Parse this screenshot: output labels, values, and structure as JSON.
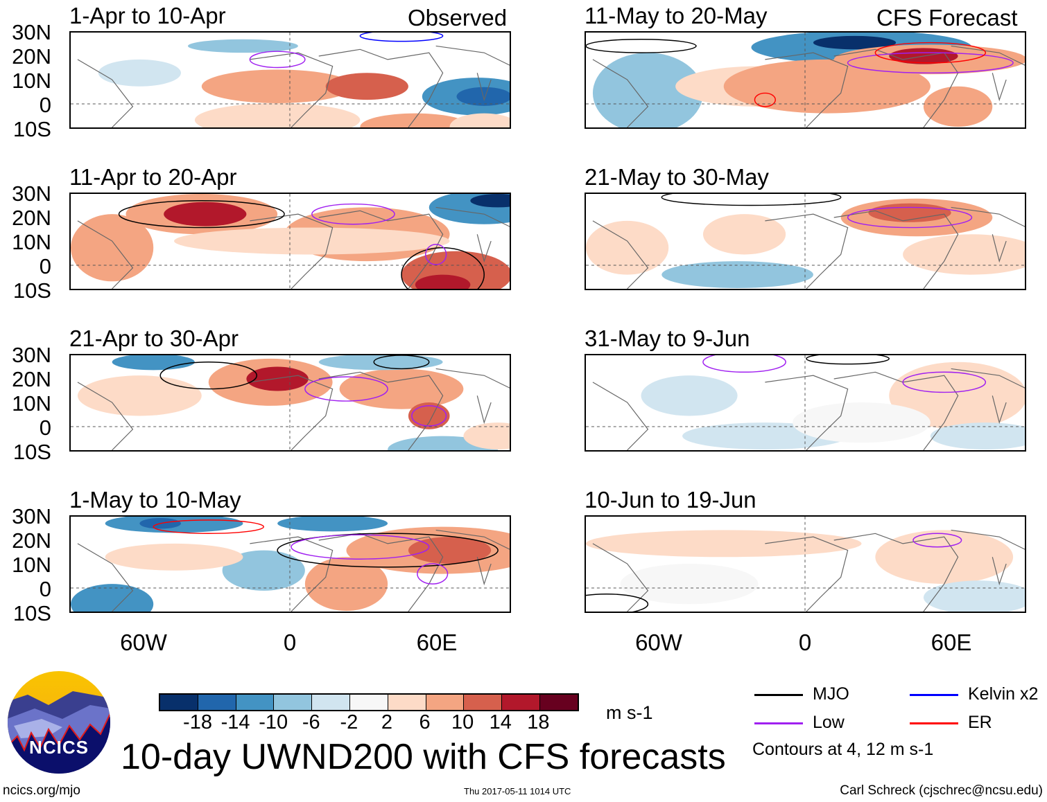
{
  "header": {
    "observed_label": "Observed",
    "forecast_label": "CFS Forecast"
  },
  "panels": [
    {
      "title": "1-Apr to 10-Apr",
      "column": "observed"
    },
    {
      "title": "11-Apr to 20-Apr",
      "column": "observed"
    },
    {
      "title": "21-Apr to 30-Apr",
      "column": "observed"
    },
    {
      "title": "1-May to 10-May",
      "column": "observed"
    },
    {
      "title": "11-May to 20-May",
      "column": "forecast"
    },
    {
      "title": "21-May to 30-May",
      "column": "forecast"
    },
    {
      "title": "31-May to 9-Jun",
      "column": "forecast"
    },
    {
      "title": "10-Jun to 19-Jun",
      "column": "forecast"
    }
  ],
  "lat_labels": [
    "30N",
    "20N",
    "10N",
    "0",
    "10S"
  ],
  "lon_labels": [
    "60W",
    "0",
    "60E"
  ],
  "colorbar": {
    "colors": [
      "#08306b",
      "#2166ac",
      "#4393c3",
      "#92c5de",
      "#d1e5f0",
      "#f7f7f7",
      "#fddbc7",
      "#f4a582",
      "#d6604d",
      "#b2182b",
      "#67001f"
    ],
    "ticks": [
      "-18",
      "-14",
      "-10",
      "-6",
      "-2",
      "2",
      "6",
      "10",
      "14",
      "18"
    ],
    "units": "m s-1"
  },
  "legend": {
    "items": [
      {
        "label": "MJO",
        "color": "#000000"
      },
      {
        "label": "Kelvin x2",
        "color": "#0000ff"
      },
      {
        "label": "Low",
        "color": "#a020f0"
      },
      {
        "label": "ER",
        "color": "#ff0000"
      }
    ],
    "note": "Contours at 4, 12 m s-1"
  },
  "title": "10-day UWND200 with CFS forecasts",
  "logo_text": "NCICS",
  "footer": {
    "url": "ncics.org/mjo",
    "timestamp": "Thu 2017-05-11 1014 UTC",
    "author": "Carl Schreck (cjschrec@ncsu.edu)"
  }
}
